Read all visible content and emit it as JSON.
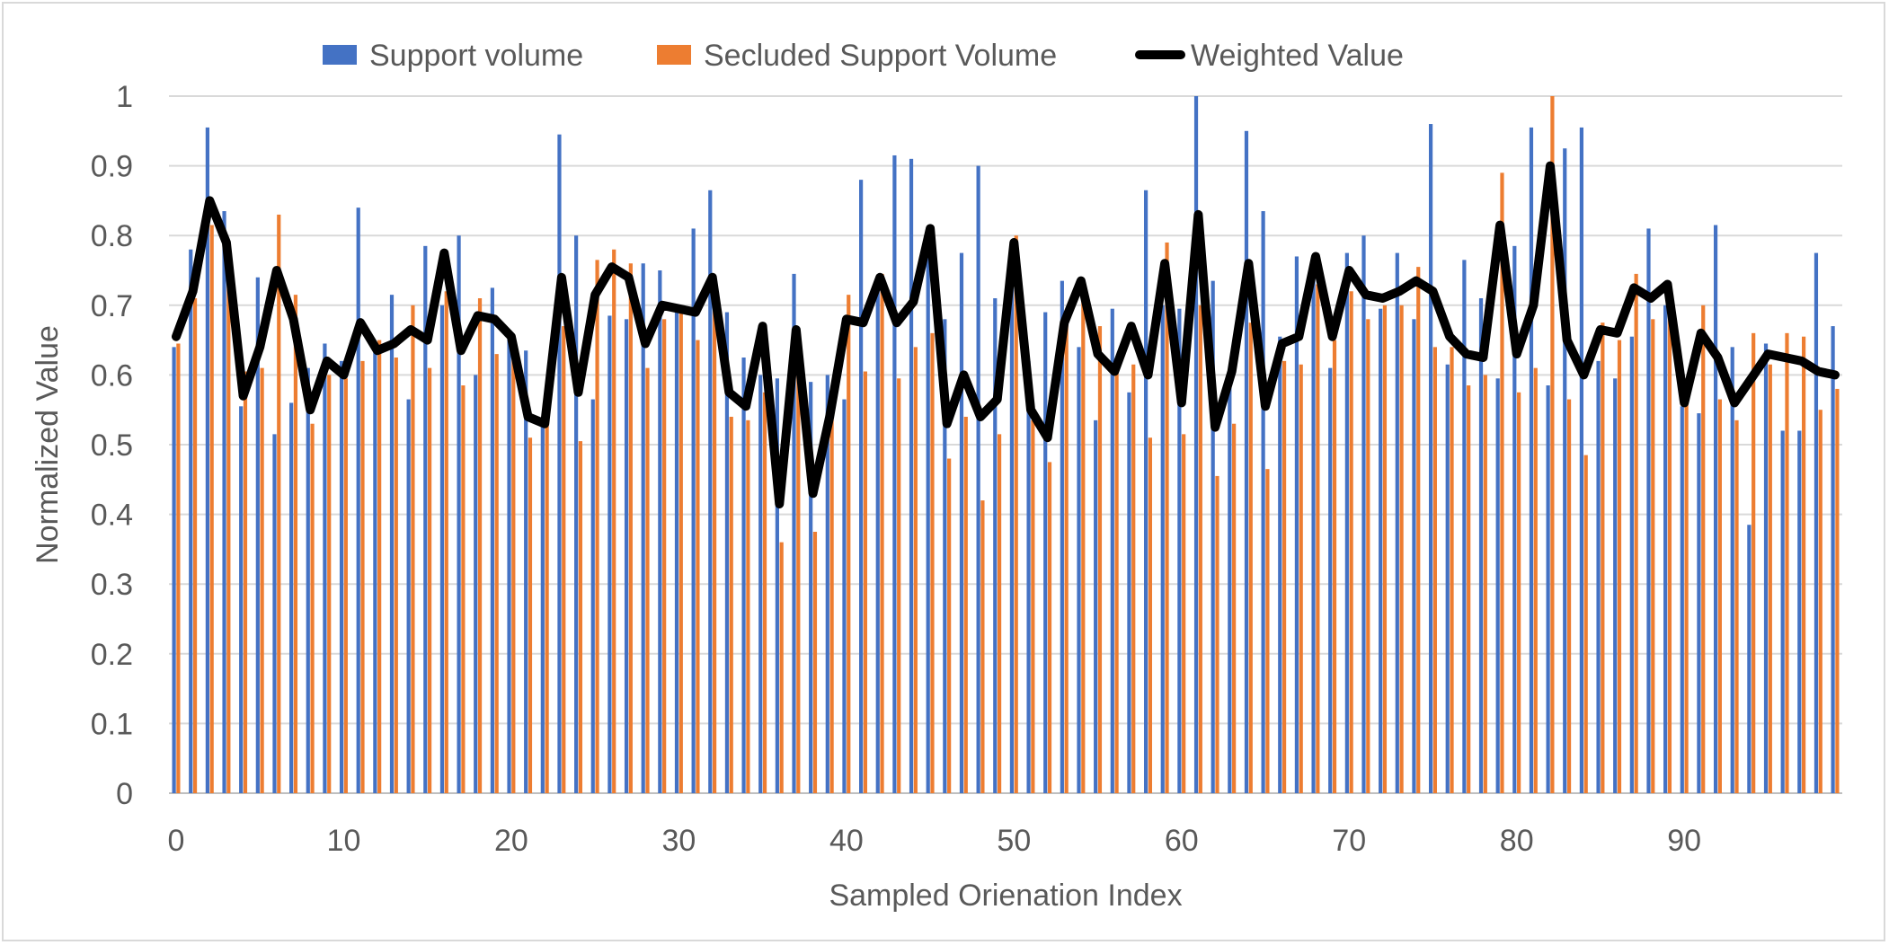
{
  "chart_data": {
    "type": "bar",
    "title": "",
    "xlabel": "Sampled Orienation Index",
    "ylabel": "Normalized Value",
    "ylim": [
      0,
      1
    ],
    "xlim": [
      0,
      99
    ],
    "grid": true,
    "legend_position": "top",
    "y_ticks": [
      "0",
      "0.1",
      "0.2",
      "0.3",
      "0.4",
      "0.5",
      "0.6",
      "0.7",
      "0.8",
      "0.9",
      "1"
    ],
    "x_ticks": [
      "0",
      "10",
      "20",
      "30",
      "40",
      "50",
      "60",
      "70",
      "80",
      "90"
    ],
    "colors": {
      "support": "#4472C4",
      "secluded": "#ED7D31",
      "weighted": "#000000",
      "grid": "#d9d9d9"
    },
    "series": [
      {
        "name": "Support volume",
        "kind": "bar",
        "values": [
          0.64,
          0.78,
          0.955,
          0.835,
          0.555,
          0.74,
          0.515,
          0.56,
          0.61,
          0.645,
          0.62,
          0.84,
          0.64,
          0.715,
          0.565,
          0.785,
          0.7,
          0.8,
          0.6,
          0.725,
          0.66,
          0.635,
          0.53,
          0.945,
          0.8,
          0.565,
          0.685,
          0.68,
          0.76,
          0.75,
          0.69,
          0.81,
          0.865,
          0.69,
          0.625,
          0.6,
          0.595,
          0.745,
          0.59,
          0.6,
          0.565,
          0.88,
          0.74,
          0.915,
          0.91,
          0.795,
          0.68,
          0.775,
          0.9,
          0.71,
          0.79,
          0.62,
          0.69,
          0.735,
          0.64,
          0.535,
          0.695,
          0.575,
          0.865,
          0.7,
          0.695,
          1.0,
          0.735,
          0.595,
          0.95,
          0.835,
          0.655,
          0.77,
          0.77,
          0.61,
          0.775,
          0.8,
          0.695,
          0.775,
          0.68,
          0.96,
          0.615,
          0.765,
          0.71,
          0.595,
          0.785,
          0.955,
          0.585,
          0.925,
          0.955,
          0.62,
          0.595,
          0.655,
          0.81,
          0.7,
          0.555,
          0.545,
          0.815,
          0.64,
          0.385,
          0.645,
          0.52,
          0.52,
          0.775,
          0.67
        ]
      },
      {
        "name": "Secluded Support Volume",
        "kind": "bar",
        "values": [
          0.645,
          0.71,
          0.815,
          0.745,
          0.605,
          0.61,
          0.83,
          0.715,
          0.53,
          0.6,
          0.595,
          0.62,
          0.65,
          0.625,
          0.7,
          0.61,
          0.72,
          0.585,
          0.71,
          0.63,
          0.64,
          0.51,
          0.545,
          0.67,
          0.505,
          0.765,
          0.78,
          0.76,
          0.61,
          0.68,
          0.69,
          0.65,
          0.73,
          0.54,
          0.535,
          0.575,
          0.36,
          0.6,
          0.375,
          0.55,
          0.715,
          0.605,
          0.745,
          0.595,
          0.64,
          0.66,
          0.48,
          0.54,
          0.42,
          0.515,
          0.8,
          0.535,
          0.475,
          0.675,
          0.715,
          0.67,
          0.605,
          0.615,
          0.51,
          0.79,
          0.515,
          0.7,
          0.455,
          0.53,
          0.675,
          0.465,
          0.62,
          0.615,
          0.73,
          0.65,
          0.72,
          0.68,
          0.7,
          0.7,
          0.755,
          0.64,
          0.64,
          0.585,
          0.6,
          0.89,
          0.575,
          0.61,
          1.0,
          0.565,
          0.485,
          0.675,
          0.65,
          0.745,
          0.68,
          0.725,
          0.56,
          0.7,
          0.565,
          0.535,
          0.66,
          0.615,
          0.66,
          0.655,
          0.55,
          0.58
        ]
      },
      {
        "name": "Weighted Value",
        "kind": "line",
        "values": [
          0.655,
          0.72,
          0.85,
          0.79,
          0.57,
          0.64,
          0.75,
          0.68,
          0.55,
          0.62,
          0.6,
          0.675,
          0.635,
          0.645,
          0.665,
          0.65,
          0.775,
          0.635,
          0.685,
          0.68,
          0.655,
          0.54,
          0.53,
          0.74,
          0.575,
          0.715,
          0.755,
          0.74,
          0.645,
          0.7,
          0.695,
          0.69,
          0.74,
          0.575,
          0.555,
          0.67,
          0.415,
          0.665,
          0.43,
          0.54,
          0.68,
          0.675,
          0.74,
          0.675,
          0.705,
          0.81,
          0.53,
          0.6,
          0.54,
          0.565,
          0.79,
          0.55,
          0.51,
          0.675,
          0.735,
          0.63,
          0.605,
          0.67,
          0.6,
          0.76,
          0.56,
          0.83,
          0.525,
          0.605,
          0.76,
          0.555,
          0.645,
          0.655,
          0.77,
          0.655,
          0.75,
          0.715,
          0.71,
          0.72,
          0.735,
          0.72,
          0.655,
          0.63,
          0.625,
          0.815,
          0.63,
          0.7,
          0.9,
          0.65,
          0.6,
          0.665,
          0.66,
          0.725,
          0.71,
          0.73,
          0.56,
          0.66,
          0.625,
          0.56,
          0.595,
          0.63,
          0.625,
          0.62,
          0.605,
          0.6
        ]
      }
    ]
  }
}
